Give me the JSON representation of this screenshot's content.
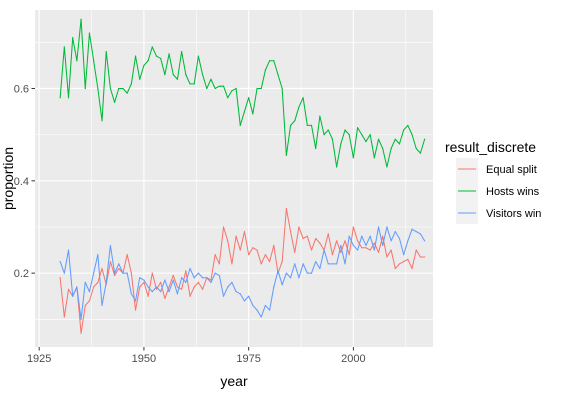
{
  "chart_data": {
    "type": "line",
    "xlabel": "year",
    "ylabel": "proportion",
    "xlim": [
      1924,
      2019
    ],
    "ylim": [
      0.04,
      0.77
    ],
    "x_ticks": [
      1925,
      1950,
      1975,
      2000
    ],
    "y_ticks": [
      0.2,
      0.4,
      0.6
    ],
    "grid": true,
    "legend_position": "right",
    "legend_title": "result_discrete",
    "series": [
      {
        "name": "Equal split",
        "color": "#F8766D",
        "points": [
          [
            1930,
            0.19
          ],
          [
            1931,
            0.105
          ],
          [
            1932,
            0.165
          ],
          [
            1933,
            0.15
          ],
          [
            1934,
            0.17
          ],
          [
            1935,
            0.07
          ],
          [
            1936,
            0.13
          ],
          [
            1937,
            0.14
          ],
          [
            1938,
            0.17
          ],
          [
            1939,
            0.18
          ],
          [
            1940,
            0.21
          ],
          [
            1941,
            0.175
          ],
          [
            1942,
            0.225
          ],
          [
            1943,
            0.195
          ],
          [
            1944,
            0.21
          ],
          [
            1945,
            0.2
          ],
          [
            1946,
            0.24
          ],
          [
            1947,
            0.2
          ],
          [
            1948,
            0.12
          ],
          [
            1949,
            0.17
          ],
          [
            1950,
            0.18
          ],
          [
            1951,
            0.15
          ],
          [
            1952,
            0.2
          ],
          [
            1953,
            0.165
          ],
          [
            1954,
            0.18
          ],
          [
            1955,
            0.145
          ],
          [
            1956,
            0.17
          ],
          [
            1957,
            0.195
          ],
          [
            1958,
            0.17
          ],
          [
            1959,
            0.165
          ],
          [
            1960,
            0.205
          ],
          [
            1961,
            0.15
          ],
          [
            1962,
            0.17
          ],
          [
            1963,
            0.18
          ],
          [
            1964,
            0.165
          ],
          [
            1965,
            0.19
          ],
          [
            1966,
            0.185
          ],
          [
            1967,
            0.24
          ],
          [
            1968,
            0.22
          ],
          [
            1969,
            0.3
          ],
          [
            1970,
            0.27
          ],
          [
            1971,
            0.22
          ],
          [
            1972,
            0.28
          ],
          [
            1973,
            0.25
          ],
          [
            1974,
            0.29
          ],
          [
            1975,
            0.24
          ],
          [
            1976,
            0.255
          ],
          [
            1977,
            0.25
          ],
          [
            1978,
            0.22
          ],
          [
            1979,
            0.24
          ],
          [
            1980,
            0.225
          ],
          [
            1981,
            0.26
          ],
          [
            1982,
            0.2
          ],
          [
            1983,
            0.225
          ],
          [
            1984,
            0.34
          ],
          [
            1985,
            0.29
          ],
          [
            1986,
            0.245
          ],
          [
            1987,
            0.3
          ],
          [
            1988,
            0.275
          ],
          [
            1989,
            0.28
          ],
          [
            1990,
            0.25
          ],
          [
            1991,
            0.275
          ],
          [
            1992,
            0.265
          ],
          [
            1993,
            0.25
          ],
          [
            1994,
            0.285
          ],
          [
            1995,
            0.24
          ],
          [
            1996,
            0.27
          ],
          [
            1997,
            0.245
          ],
          [
            1998,
            0.27
          ],
          [
            1999,
            0.24
          ],
          [
            2000,
            0.3
          ],
          [
            2001,
            0.27
          ],
          [
            2002,
            0.255
          ],
          [
            2003,
            0.255
          ],
          [
            2004,
            0.25
          ],
          [
            2005,
            0.265
          ],
          [
            2006,
            0.245
          ],
          [
            2007,
            0.28
          ],
          [
            2008,
            0.235
          ],
          [
            2009,
            0.25
          ],
          [
            2010,
            0.21
          ],
          [
            2011,
            0.22
          ],
          [
            2012,
            0.225
          ],
          [
            2013,
            0.23
          ],
          [
            2014,
            0.21
          ],
          [
            2015,
            0.25
          ],
          [
            2016,
            0.235
          ],
          [
            2017,
            0.235
          ]
        ]
      },
      {
        "name": "Hosts wins",
        "color": "#00BA38",
        "points": [
          [
            1930,
            0.58
          ],
          [
            1931,
            0.69
          ],
          [
            1932,
            0.58
          ],
          [
            1933,
            0.71
          ],
          [
            1934,
            0.66
          ],
          [
            1935,
            0.75
          ],
          [
            1936,
            0.6
          ],
          [
            1937,
            0.72
          ],
          [
            1938,
            0.66
          ],
          [
            1939,
            0.6
          ],
          [
            1940,
            0.53
          ],
          [
            1941,
            0.68
          ],
          [
            1942,
            0.6
          ],
          [
            1943,
            0.57
          ],
          [
            1944,
            0.6
          ],
          [
            1945,
            0.6
          ],
          [
            1946,
            0.59
          ],
          [
            1947,
            0.61
          ],
          [
            1948,
            0.67
          ],
          [
            1949,
            0.62
          ],
          [
            1950,
            0.65
          ],
          [
            1951,
            0.66
          ],
          [
            1952,
            0.69
          ],
          [
            1953,
            0.67
          ],
          [
            1954,
            0.665
          ],
          [
            1955,
            0.63
          ],
          [
            1956,
            0.675
          ],
          [
            1957,
            0.63
          ],
          [
            1958,
            0.62
          ],
          [
            1959,
            0.68
          ],
          [
            1960,
            0.63
          ],
          [
            1961,
            0.61
          ],
          [
            1962,
            0.61
          ],
          [
            1963,
            0.67
          ],
          [
            1964,
            0.63
          ],
          [
            1965,
            0.6
          ],
          [
            1966,
            0.62
          ],
          [
            1967,
            0.6
          ],
          [
            1968,
            0.605
          ],
          [
            1969,
            0.605
          ],
          [
            1970,
            0.58
          ],
          [
            1971,
            0.595
          ],
          [
            1972,
            0.6
          ],
          [
            1973,
            0.52
          ],
          [
            1974,
            0.55
          ],
          [
            1975,
            0.58
          ],
          [
            1976,
            0.545
          ],
          [
            1977,
            0.6
          ],
          [
            1978,
            0.6
          ],
          [
            1979,
            0.64
          ],
          [
            1980,
            0.66
          ],
          [
            1981,
            0.66
          ],
          [
            1982,
            0.63
          ],
          [
            1983,
            0.6
          ],
          [
            1984,
            0.455
          ],
          [
            1985,
            0.52
          ],
          [
            1986,
            0.53
          ],
          [
            1987,
            0.56
          ],
          [
            1988,
            0.58
          ],
          [
            1989,
            0.52
          ],
          [
            1990,
            0.52
          ],
          [
            1991,
            0.47
          ],
          [
            1992,
            0.54
          ],
          [
            1993,
            0.5
          ],
          [
            1994,
            0.51
          ],
          [
            1995,
            0.49
          ],
          [
            1996,
            0.43
          ],
          [
            1997,
            0.48
          ],
          [
            1998,
            0.51
          ],
          [
            1999,
            0.5
          ],
          [
            2000,
            0.45
          ],
          [
            2001,
            0.515
          ],
          [
            2002,
            0.5
          ],
          [
            2003,
            0.485
          ],
          [
            2004,
            0.5
          ],
          [
            2005,
            0.45
          ],
          [
            2006,
            0.49
          ],
          [
            2007,
            0.47
          ],
          [
            2008,
            0.43
          ],
          [
            2009,
            0.47
          ],
          [
            2010,
            0.49
          ],
          [
            2011,
            0.48
          ],
          [
            2012,
            0.51
          ],
          [
            2013,
            0.52
          ],
          [
            2014,
            0.5
          ],
          [
            2015,
            0.47
          ],
          [
            2016,
            0.46
          ],
          [
            2017,
            0.49
          ]
        ]
      },
      {
        "name": "Visitors win",
        "color": "#619CFF",
        "points": [
          [
            1930,
            0.225
          ],
          [
            1931,
            0.2
          ],
          [
            1932,
            0.25
          ],
          [
            1933,
            0.15
          ],
          [
            1934,
            0.17
          ],
          [
            1935,
            0.1
          ],
          [
            1936,
            0.18
          ],
          [
            1937,
            0.16
          ],
          [
            1938,
            0.2
          ],
          [
            1939,
            0.24
          ],
          [
            1940,
            0.13
          ],
          [
            1941,
            0.18
          ],
          [
            1942,
            0.26
          ],
          [
            1943,
            0.2
          ],
          [
            1944,
            0.22
          ],
          [
            1945,
            0.2
          ],
          [
            1946,
            0.2
          ],
          [
            1947,
            0.155
          ],
          [
            1948,
            0.14
          ],
          [
            1949,
            0.19
          ],
          [
            1950,
            0.185
          ],
          [
            1951,
            0.17
          ],
          [
            1952,
            0.16
          ],
          [
            1953,
            0.17
          ],
          [
            1954,
            0.16
          ],
          [
            1955,
            0.185
          ],
          [
            1956,
            0.16
          ],
          [
            1957,
            0.185
          ],
          [
            1958,
            0.155
          ],
          [
            1959,
            0.19
          ],
          [
            1960,
            0.18
          ],
          [
            1961,
            0.21
          ],
          [
            1962,
            0.19
          ],
          [
            1963,
            0.2
          ],
          [
            1964,
            0.19
          ],
          [
            1965,
            0.19
          ],
          [
            1966,
            0.18
          ],
          [
            1967,
            0.2
          ],
          [
            1968,
            0.195
          ],
          [
            1969,
            0.15
          ],
          [
            1970,
            0.17
          ],
          [
            1971,
            0.18
          ],
          [
            1972,
            0.16
          ],
          [
            1973,
            0.155
          ],
          [
            1974,
            0.14
          ],
          [
            1975,
            0.15
          ],
          [
            1976,
            0.13
          ],
          [
            1977,
            0.12
          ],
          [
            1978,
            0.105
          ],
          [
            1979,
            0.13
          ],
          [
            1980,
            0.12
          ],
          [
            1981,
            0.17
          ],
          [
            1982,
            0.205
          ],
          [
            1983,
            0.175
          ],
          [
            1984,
            0.2
          ],
          [
            1985,
            0.19
          ],
          [
            1986,
            0.22
          ],
          [
            1987,
            0.19
          ],
          [
            1988,
            0.22
          ],
          [
            1989,
            0.2
          ],
          [
            1990,
            0.2
          ],
          [
            1991,
            0.225
          ],
          [
            1992,
            0.21
          ],
          [
            1993,
            0.25
          ],
          [
            1994,
            0.22
          ],
          [
            1995,
            0.22
          ],
          [
            1996,
            0.22
          ],
          [
            1997,
            0.26
          ],
          [
            1998,
            0.22
          ],
          [
            1999,
            0.28
          ],
          [
            2000,
            0.26
          ],
          [
            2001,
            0.25
          ],
          [
            2002,
            0.28
          ],
          [
            2003,
            0.26
          ],
          [
            2004,
            0.28
          ],
          [
            2005,
            0.25
          ],
          [
            2006,
            0.3
          ],
          [
            2007,
            0.26
          ],
          [
            2008,
            0.3
          ],
          [
            2009,
            0.27
          ],
          [
            2010,
            0.29
          ],
          [
            2011,
            0.275
          ],
          [
            2012,
            0.24
          ],
          [
            2013,
            0.27
          ],
          [
            2014,
            0.295
          ],
          [
            2015,
            0.29
          ],
          [
            2016,
            0.285
          ],
          [
            2017,
            0.27
          ]
        ]
      }
    ]
  }
}
